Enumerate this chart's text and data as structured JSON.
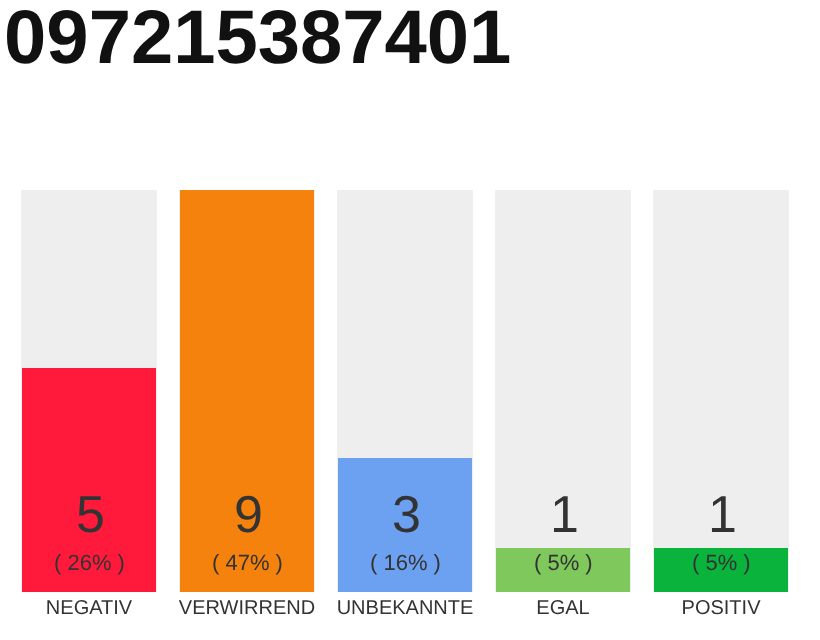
{
  "chart_data": {
    "type": "bar",
    "title": "097215387401",
    "categories": [
      "NEGATIV",
      "VERWIRREND",
      "UNBEKANNTE",
      "EGAL",
      "POSITIV"
    ],
    "values": [
      5,
      9,
      3,
      1,
      1
    ],
    "colors": [
      "#ff1a3c",
      "#f5820d",
      "#6ca0f0",
      "#7ec85c",
      "#0ab43c"
    ],
    "value_labels": [
      "5\n( 26% )",
      "9\n( 47% )",
      "3\n( 16% )",
      "1\n( 5% )",
      "1\n( 5% )"
    ],
    "ylim": [
      0,
      9
    ],
    "tick_labels": "x",
    "grid": false,
    "legend": false
  }
}
